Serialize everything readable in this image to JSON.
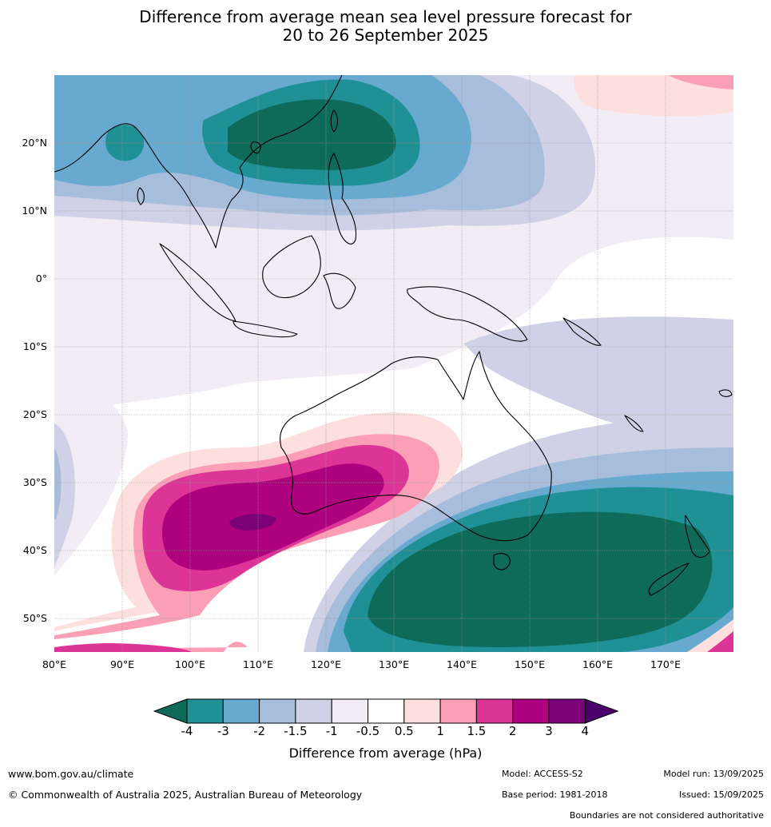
{
  "title_line1": "Difference from average mean sea level pressure forecast for",
  "title_line2": "20 to 26 September 2025",
  "lat_labels": [
    "20°N",
    "10°N",
    "0°",
    "10°S",
    "20°S",
    "30°S",
    "40°S",
    "50°S"
  ],
  "lon_labels": [
    "80°E",
    "90°E",
    "100°E",
    "110°E",
    "120°E",
    "130°E",
    "140°E",
    "150°E",
    "160°E",
    "170°E"
  ],
  "colorbar": {
    "ticks": [
      "-4",
      "-3",
      "-2",
      "-1.5",
      "-1",
      "-0.5",
      "0.5",
      "1",
      "1.5",
      "2",
      "3",
      "4"
    ],
    "colors": [
      "#0e6b5a",
      "#1f9196",
      "#67a9cf",
      "#a6bddb",
      "#d0d1e6",
      "#f2ecf5",
      "#ffffff",
      "#fde0dd",
      "#fa9fb5",
      "#dd3497",
      "#ae017e",
      "#7a0177",
      "#49006a"
    ],
    "label": "Difference from average (hPa)"
  },
  "footer": {
    "website": "www.bom.gov.au/climate",
    "copyright": "© Commonwealth of Australia 2025, Australian Bureau of Meteorology",
    "model": "Model: ACCESS-S2",
    "base_period": "Base period: 1981-2018",
    "model_run": "Model run: 13/09/2025",
    "issued": "Issued: 15/09/2025",
    "disclaimer": "Boundaries are not considered authoritative"
  }
}
